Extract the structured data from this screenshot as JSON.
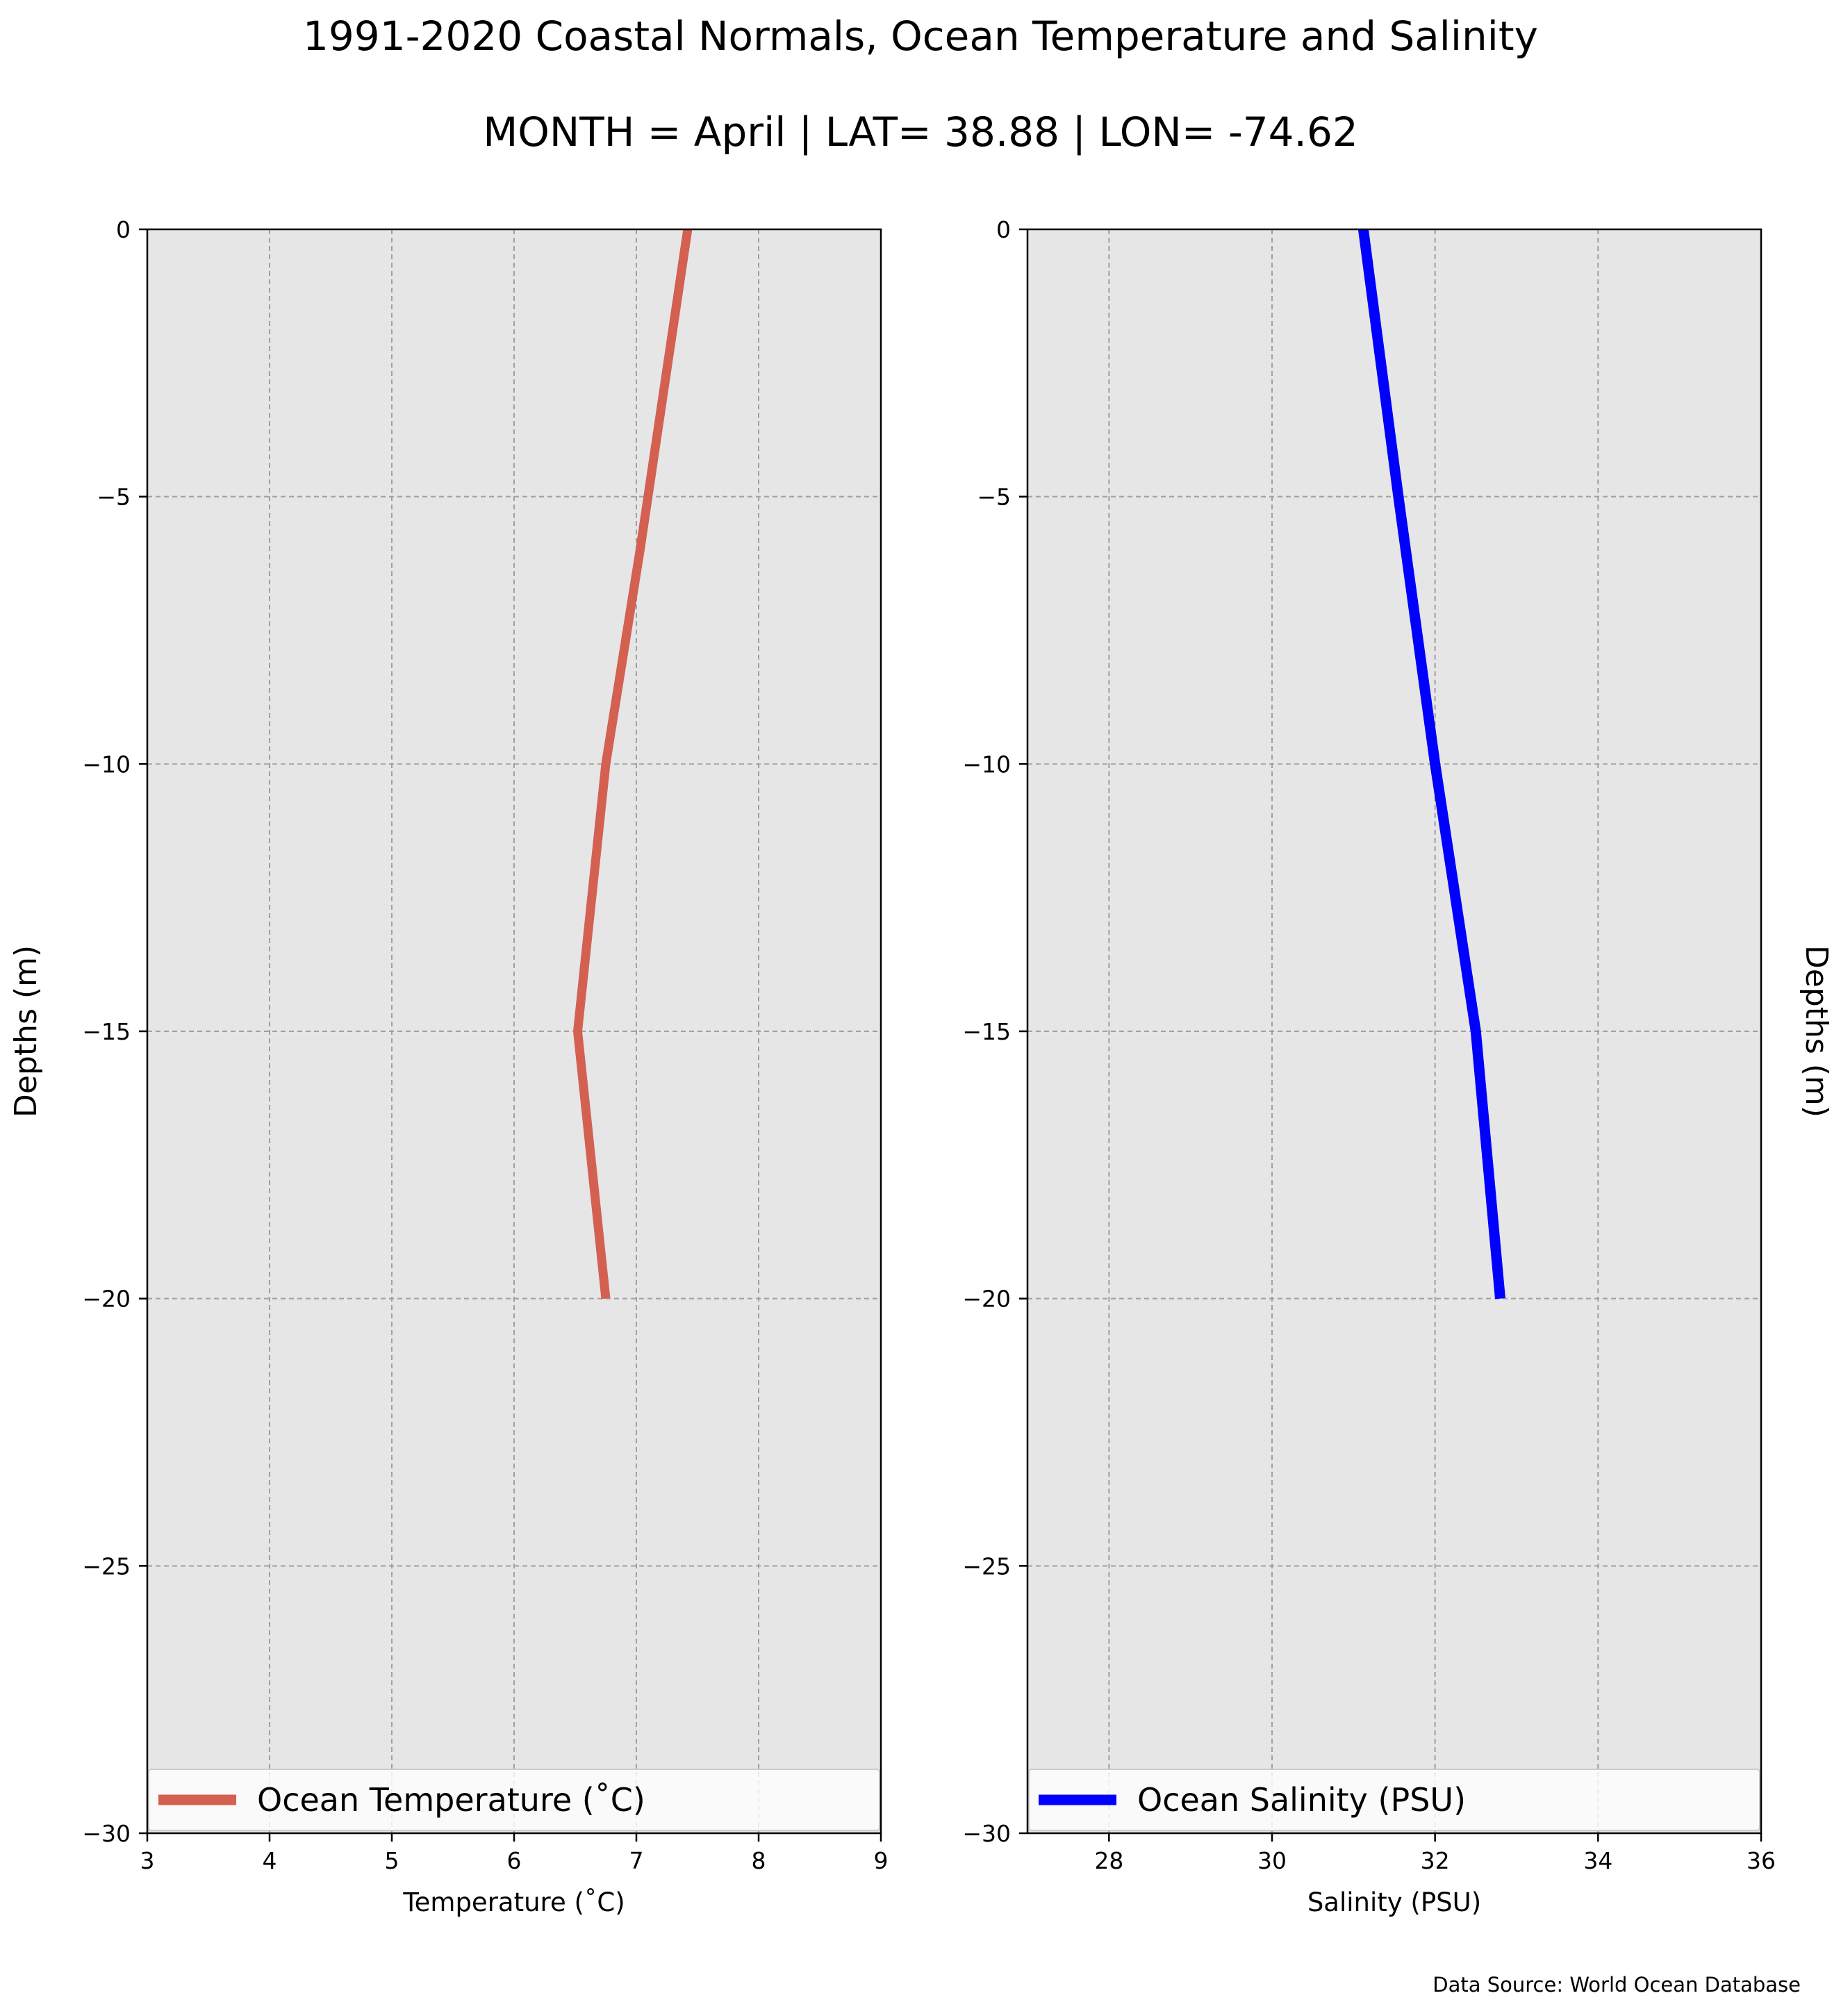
{
  "title": "1991-2020 Coastal Normals, Ocean Temperature and Salinity",
  "subtitle": "MONTH = April | LAT= 38.88 | LON= -74.62",
  "source": "Data Source: World Ocean Database",
  "chart_data": [
    {
      "type": "line",
      "xlabel": "Temperature ($^\\circ$C)",
      "xlabel_display": "Temperature (˚C)",
      "ylabel": "Depths (m)",
      "xlim": [
        3,
        9
      ],
      "ylim": [
        -30,
        0
      ],
      "xticks": [
        3,
        4,
        5,
        6,
        7,
        8,
        9
      ],
      "xtick_labels": [
        "3",
        "4",
        "5",
        "6",
        "7",
        "8",
        "9"
      ],
      "yticks": [
        0,
        -5,
        -10,
        -15,
        -20,
        -25,
        -30
      ],
      "ytick_labels": [
        "0",
        "−5",
        "−10",
        "−15",
        "−20",
        "−25",
        "−30"
      ],
      "grid": true,
      "legend_position": "bottom",
      "background": "#e6e6e6",
      "series": [
        {
          "name": "Ocean Temperature (˚C)",
          "color": "#d46051",
          "x": [
            7.42,
            7.03,
            6.75,
            6.52,
            6.75
          ],
          "y": [
            0,
            -6,
            -10,
            -15,
            -20
          ]
        }
      ]
    },
    {
      "type": "line",
      "xlabel": "Salinity (PSU)",
      "ylabel": "Depths (m)",
      "ylabel_side": "right",
      "xlim": [
        27,
        36
      ],
      "ylim": [
        -30,
        0
      ],
      "xticks": [
        28,
        30,
        32,
        34,
        36
      ],
      "xtick_labels": [
        "28",
        "30",
        "32",
        "34",
        "36"
      ],
      "yticks": [
        0,
        -5,
        -10,
        -15,
        -20,
        -25,
        -30
      ],
      "ytick_labels": [
        "0",
        "−5",
        "−10",
        "−15",
        "−20",
        "−25",
        "−30"
      ],
      "grid": true,
      "legend_position": "bottom",
      "background": "#e6e6e6",
      "series": [
        {
          "name": "Ocean Salinity (PSU)",
          "color": "#0000ff",
          "x": [
            31.12,
            31.55,
            32.0,
            32.5,
            32.8
          ],
          "y": [
            0,
            -5,
            -10,
            -15,
            -20
          ]
        }
      ]
    }
  ]
}
